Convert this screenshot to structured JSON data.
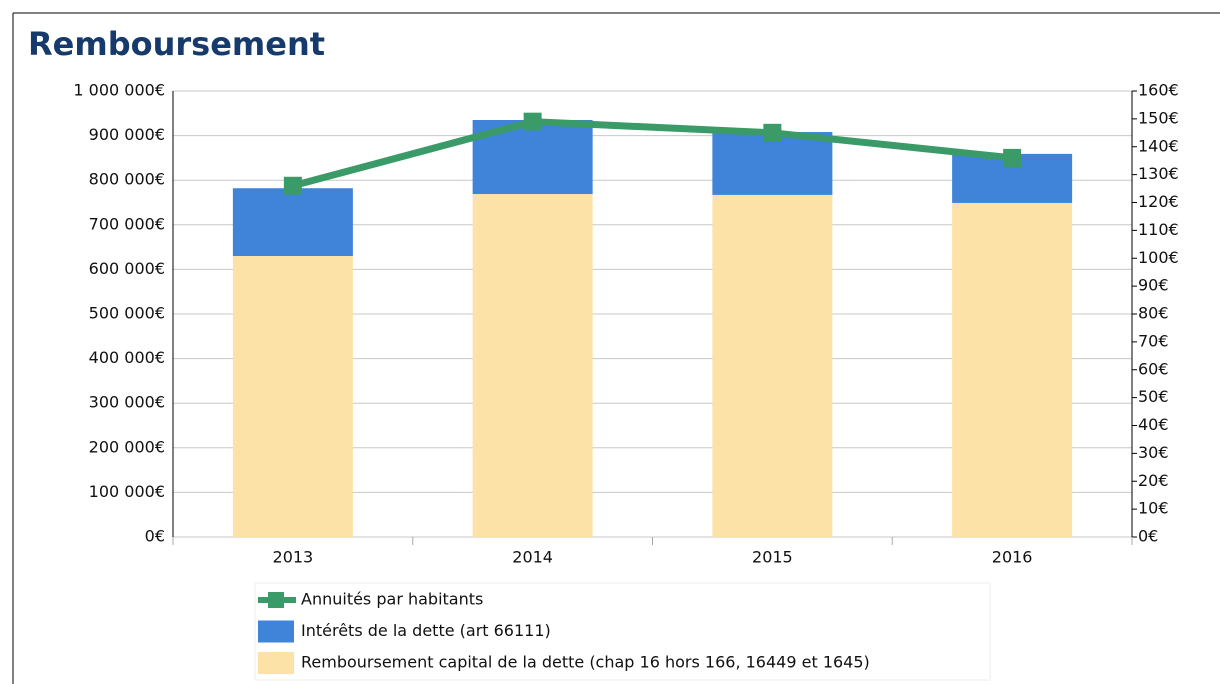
{
  "chart_data": {
    "type": "bar",
    "title": "Remboursement",
    "categories": [
      "2013",
      "2014",
      "2015",
      "2016"
    ],
    "stacked": true,
    "series": [
      {
        "name": "Remboursement capital de la dette (chap 16 hors 166, 16449 et 1645)",
        "color": "#fce2a6",
        "values": [
          630000,
          769000,
          767000,
          749000
        ]
      },
      {
        "name": "Intérêts de la dette (art 66111)",
        "color": "#3f84d9",
        "values": [
          152000,
          166000,
          141000,
          110000
        ]
      },
      {
        "name": "Annuités par habitants",
        "type": "line",
        "axis": "y2",
        "color": "#3a9a68",
        "values": [
          126,
          149,
          145,
          136
        ]
      }
    ],
    "ylim": [
      0,
      1000000
    ],
    "yticks": [
      {
        "value": 0,
        "label": "0€"
      },
      {
        "value": 100000,
        "label": "100 000€"
      },
      {
        "value": 200000,
        "label": "200 000€"
      },
      {
        "value": 300000,
        "label": "300 000€"
      },
      {
        "value": 400000,
        "label": "400 000€"
      },
      {
        "value": 500000,
        "label": "500 000€"
      },
      {
        "value": 600000,
        "label": "600 000€"
      },
      {
        "value": 700000,
        "label": "700 000€"
      },
      {
        "value": 800000,
        "label": "800 000€"
      },
      {
        "value": 900000,
        "label": "900 000€"
      },
      {
        "value": 1000000,
        "label": "1 000 000€"
      }
    ],
    "y2lim": [
      0,
      160
    ],
    "y2ticks": [
      {
        "value": 0,
        "label": "0€"
      },
      {
        "value": 10,
        "label": "10€"
      },
      {
        "value": 20,
        "label": "20€"
      },
      {
        "value": 30,
        "label": "30€"
      },
      {
        "value": 40,
        "label": "40€"
      },
      {
        "value": 50,
        "label": "50€"
      },
      {
        "value": 60,
        "label": "60€"
      },
      {
        "value": 70,
        "label": "70€"
      },
      {
        "value": 80,
        "label": "80€"
      },
      {
        "value": 90,
        "label": "90€"
      },
      {
        "value": 100,
        "label": "100€"
      },
      {
        "value": 110,
        "label": "110€"
      },
      {
        "value": 120,
        "label": "120€"
      },
      {
        "value": 130,
        "label": "130€"
      },
      {
        "value": 140,
        "label": "140€"
      },
      {
        "value": 150,
        "label": "150€"
      },
      {
        "value": 160,
        "label": "160€"
      }
    ],
    "grid": true
  }
}
